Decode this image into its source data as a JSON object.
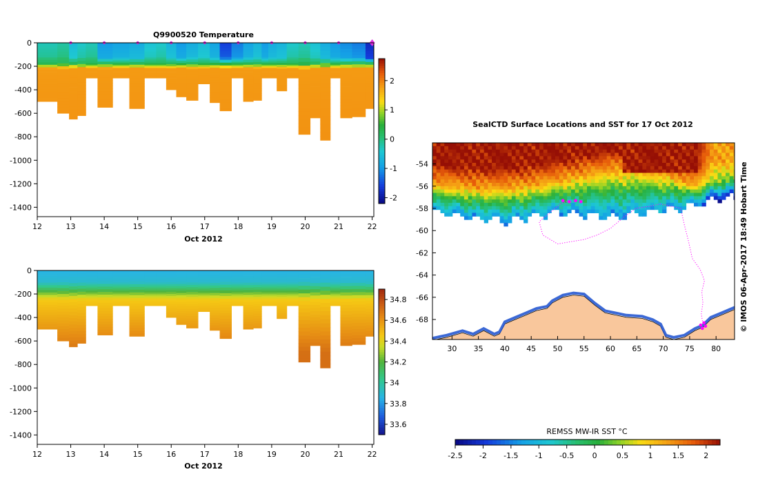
{
  "chart_data": [
    {
      "type": "heatmap",
      "title": "Q9900520  Temperature",
      "xlabel": "Oct 2012",
      "x_ticks": [
        "12",
        "13",
        "14",
        "15",
        "16",
        "17",
        "18",
        "19",
        "20",
        "21",
        "22"
      ],
      "xlim": [
        12,
        22.05
      ],
      "ylim": [
        -1480,
        0
      ],
      "y_ticks": [
        "0",
        "-200",
        "-400",
        "-600",
        "-800",
        "-1000",
        "-1200",
        "-1400"
      ],
      "y_tick_values": [
        0,
        -200,
        -400,
        -600,
        -800,
        -1000,
        -1200,
        -1400
      ],
      "colorbar": {
        "ticks": [
          "2",
          "1",
          "0",
          "-1",
          "-2"
        ],
        "tick_values": [
          2,
          1,
          0,
          -1,
          -2
        ],
        "range": [
          -2.2,
          2.75
        ]
      },
      "profile_times": [
        12.1,
        12.4,
        12.8,
        13.1,
        13.3,
        13.6,
        14.0,
        14.5,
        15.0,
        15.4,
        15.7,
        16.0,
        16.3,
        16.6,
        17.0,
        17.3,
        17.6,
        18.0,
        18.3,
        18.6,
        18.8,
        19.0,
        19.3,
        19.6,
        20.0,
        20.3,
        20.6,
        20.9,
        21.2,
        21.6,
        22.0
      ],
      "profile_max_depth": [
        500,
        500,
        600,
        650,
        620,
        300,
        550,
        300,
        560,
        300,
        300,
        400,
        460,
        490,
        350,
        510,
        580,
        300,
        500,
        490,
        300,
        300,
        410,
        300,
        780,
        640,
        830,
        300,
        640,
        630,
        560
      ],
      "surface_temp": [
        -0.3,
        -0.3,
        -0.2,
        -0.6,
        -0.4,
        -0.3,
        -1.0,
        -0.9,
        -0.8,
        -0.5,
        -0.4,
        -0.7,
        -1.0,
        -0.8,
        -0.6,
        -0.9,
        -1.6,
        -1.2,
        -0.9,
        -0.7,
        -1.0,
        -0.8,
        -0.7,
        -0.4,
        -0.3,
        -0.5,
        -0.8,
        -1.0,
        -1.1,
        -1.2,
        -1.8
      ],
      "deep_temp": [
        1.8,
        1.8,
        1.8,
        1.8,
        1.8,
        1.8,
        1.8,
        1.8,
        1.8,
        1.8,
        1.8,
        1.8,
        1.8,
        1.8,
        1.8,
        1.8,
        1.8,
        1.8,
        1.8,
        1.8,
        1.8,
        1.8,
        1.8,
        1.8,
        1.8,
        1.8,
        1.8,
        1.8,
        1.8,
        1.8,
        1.8
      ],
      "marker_times": [
        13.0,
        14.0,
        15.0,
        16.0,
        17.0,
        18.0,
        19.0,
        20.0,
        21.0,
        22.0
      ]
    },
    {
      "type": "heatmap",
      "title": "",
      "xlabel": "Oct 2012",
      "x_ticks": [
        "12",
        "13",
        "14",
        "15",
        "16",
        "17",
        "18",
        "19",
        "20",
        "21",
        "22"
      ],
      "xlim": [
        12,
        22.05
      ],
      "ylim": [
        -1480,
        0
      ],
      "y_ticks": [
        "0",
        "-200",
        "-400",
        "-600",
        "-800",
        "-1000",
        "-1200",
        "-1400"
      ],
      "y_tick_values": [
        0,
        -200,
        -400,
        -600,
        -800,
        -1000,
        -1200,
        -1400
      ],
      "colorbar": {
        "ticks": [
          "34.8",
          "34.6",
          "34.4",
          "34.2",
          "34",
          "33.8",
          "33.6"
        ],
        "tick_values": [
          34.8,
          34.6,
          34.4,
          34.2,
          34.0,
          33.8,
          33.6
        ],
        "range": [
          33.5,
          34.9
        ]
      },
      "surface_salinity": 33.85,
      "deep_salinity": 34.7
    },
    {
      "type": "heatmap",
      "title": "SealCTD Surface Locations and SST for 17 Oct 2012",
      "x_ticks": [
        "30",
        "35",
        "40",
        "45",
        "50",
        "55",
        "60",
        "65",
        "70",
        "75",
        "80"
      ],
      "x_tick_values": [
        30,
        35,
        40,
        45,
        50,
        55,
        60,
        65,
        70,
        75,
        80
      ],
      "y_ticks": [
        "-54",
        "-56",
        "-58",
        "-60",
        "-62",
        "-64",
        "-66",
        "-68"
      ],
      "y_tick_values": [
        -54,
        -56,
        -58,
        -60,
        -62,
        -64,
        -66,
        -68
      ],
      "xlim": [
        26.3,
        83.5
      ],
      "ylim": [
        -69.8,
        -52.1
      ],
      "colorbar": {
        "label": "REMSS MW-IR SST °C",
        "ticks": [
          "-2.5",
          "-2",
          "-1.5",
          "-1",
          "-0.5",
          "0",
          "0.5",
          "1",
          "1.5",
          "2"
        ],
        "tick_values": [
          -2.5,
          -2,
          -1.5,
          -1,
          -0.5,
          0,
          0.5,
          1,
          1.5,
          2
        ],
        "range": [
          -2.5,
          2.25
        ]
      },
      "track": [
        [
          52.2,
          -57.3
        ],
        [
          50.5,
          -57.6
        ],
        [
          48.5,
          -58.4
        ],
        [
          46.5,
          -59.2
        ],
        [
          47.2,
          -60.4
        ],
        [
          50.0,
          -61.2
        ],
        [
          52.5,
          -61.0
        ],
        [
          55.0,
          -60.8
        ],
        [
          57.5,
          -60.4
        ],
        [
          60.0,
          -59.8
        ],
        [
          62.5,
          -58.8
        ],
        [
          64.8,
          -58.0
        ],
        [
          67.5,
          -57.8
        ],
        [
          69.5,
          -57.6
        ],
        [
          71.5,
          -57.8
        ],
        [
          73.3,
          -58.0
        ],
        [
          74.0,
          -59.5
        ],
        [
          74.8,
          -61.0
        ],
        [
          75.5,
          -62.5
        ],
        [
          77.0,
          -63.5
        ],
        [
          77.8,
          -64.5
        ],
        [
          77.3,
          -65.5
        ],
        [
          77.5,
          -66.5
        ],
        [
          77.2,
          -67.5
        ],
        [
          77.5,
          -68.4
        ]
      ],
      "sst_field": {
        "lon_nodes": [
          26,
          30,
          35,
          40,
          45,
          50,
          55,
          60,
          65,
          70,
          75,
          80,
          84
        ],
        "ice_edge_lat": [
          -58.2,
          -58.4,
          -58.8,
          -59.0,
          -58.6,
          -58.2,
          -58.4,
          -58.6,
          -58.4,
          -58.0,
          -57.6,
          -57.0,
          -56.8
        ],
        "warm_lat": [
          -55.8,
          -56.0,
          -56.2,
          -56.2,
          -55.9,
          -55.5,
          -55.0,
          -54.6,
          -54.6,
          -55.0,
          -55.8,
          -55.6,
          -55.2
        ]
      }
    }
  ],
  "credit": "© IMOS 06-Apr-2017 18:49 Hobart Time"
}
